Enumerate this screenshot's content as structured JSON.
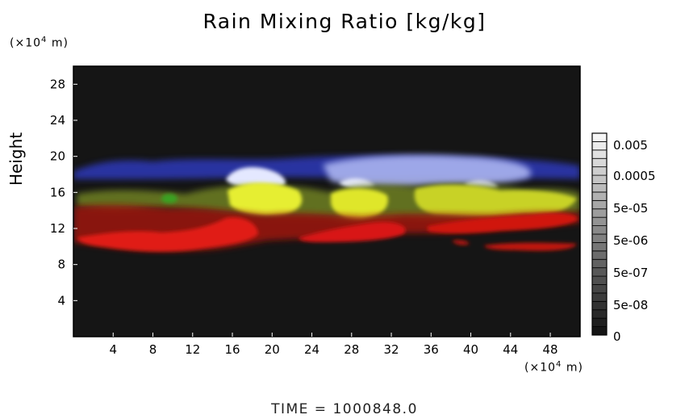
{
  "chart_data": {
    "type": "heatmap",
    "title": "Rain Mixing Ratio [kg/kg]",
    "ylabel": "Height",
    "y_unit": "(×10⁴ m)",
    "x_unit": "(×10⁴ m)",
    "xlim": [
      0,
      51
    ],
    "ylim": [
      0,
      30
    ],
    "x_ticks": [
      4,
      8,
      12,
      16,
      20,
      24,
      28,
      32,
      36,
      40,
      44,
      48
    ],
    "y_ticks": [
      4,
      8,
      12,
      16,
      20,
      24,
      28
    ],
    "colorbar_labels": [
      "0.005",
      "0.0005",
      "5e-05",
      "5e-06",
      "5e-07",
      "5e-08",
      "0"
    ],
    "colorbar_steps": 24,
    "bands": [
      {
        "name": "blue",
        "color": "#3a46c8",
        "y_range": [
          17,
          20
        ]
      },
      {
        "name": "white",
        "color": "#e8ecff",
        "y_range": [
          16.5,
          20
        ]
      },
      {
        "name": "yellow",
        "color": "#e6ee30",
        "y_range": [
          13,
          17
        ]
      },
      {
        "name": "red",
        "color": "#e01a14",
        "y_range": [
          9.5,
          14
        ]
      }
    ]
  },
  "footer": "TIME = 1000848.0"
}
